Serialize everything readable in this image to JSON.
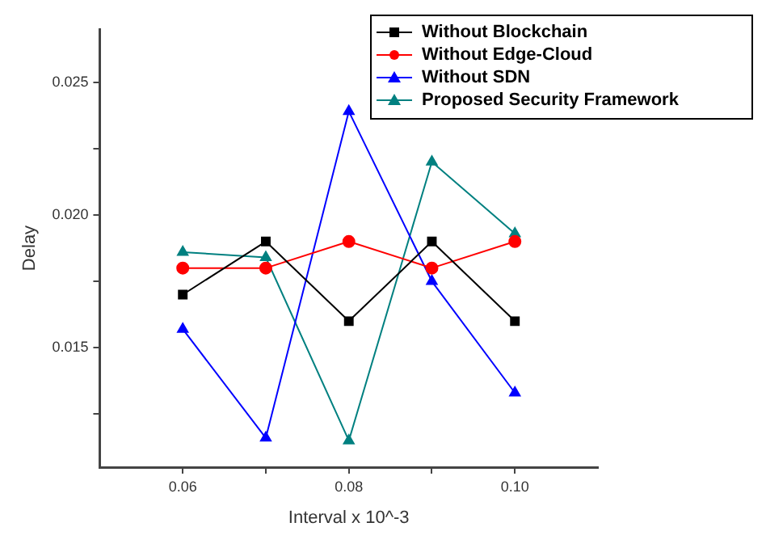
{
  "chart_data": {
    "type": "line",
    "xlabel": "Interval x 10^-3",
    "ylabel": "Delay",
    "x": [
      0.06,
      0.07,
      0.08,
      0.09,
      0.1
    ],
    "series": [
      {
        "name": "Without Blockchain",
        "color": "#000000",
        "marker": "square",
        "values": [
          0.017,
          0.019,
          0.016,
          0.019,
          0.016
        ]
      },
      {
        "name": "Without Edge-Cloud",
        "color": "#ff0000",
        "marker": "circle",
        "values": [
          0.018,
          0.018,
          0.019,
          0.018,
          0.019
        ]
      },
      {
        "name": "Without SDN",
        "color": "#0000ff",
        "marker": "triangle",
        "values": [
          0.0157,
          0.0116,
          0.0239,
          0.0175,
          0.0133
        ]
      },
      {
        "name": "Proposed Security Framework",
        "color": "#008080",
        "marker": "triangle",
        "values": [
          0.0186,
          0.0184,
          0.0115,
          0.022,
          0.0193
        ]
      }
    ],
    "xlim": [
      0.05,
      0.11
    ],
    "xticks": [
      0.06,
      {
        "value": 0.07,
        "label": null
      },
      0.08,
      {
        "value": 0.09,
        "label": null
      },
      {
        "value": 0.1,
        "label": "0.10"
      }
    ],
    "ylim": [
      0.0105,
      0.027
    ],
    "yticks": [
      {
        "value": 0.0125,
        "label": null
      },
      0.015,
      {
        "value": 0.0175,
        "label": null
      },
      {
        "value": 0.02,
        "label": "0.020"
      },
      {
        "value": 0.0225,
        "label": null
      },
      0.025
    ],
    "grid": false,
    "legend": "top right",
    "line_style": "solid"
  }
}
